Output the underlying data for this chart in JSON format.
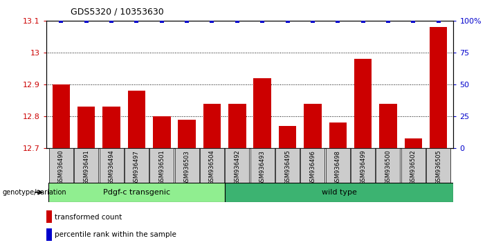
{
  "title": "GDS5320 / 10353630",
  "samples": [
    "GSM936490",
    "GSM936491",
    "GSM936494",
    "GSM936497",
    "GSM936501",
    "GSM936503",
    "GSM936504",
    "GSM936492",
    "GSM936493",
    "GSM936495",
    "GSM936496",
    "GSM936498",
    "GSM936499",
    "GSM936500",
    "GSM936502",
    "GSM936505"
  ],
  "red_values": [
    12.9,
    12.83,
    12.83,
    12.88,
    12.8,
    12.79,
    12.84,
    12.84,
    12.92,
    12.77,
    12.84,
    12.78,
    12.98,
    12.84,
    12.73,
    13.08
  ],
  "blue_values": [
    100,
    100,
    100,
    100,
    100,
    100,
    100,
    100,
    100,
    100,
    100,
    100,
    100,
    100,
    100,
    100
  ],
  "group1_count": 7,
  "group1_label": "Pdgf-c transgenic",
  "group2_label": "wild type",
  "group1_color": "#90EE90",
  "group2_color": "#3CB371",
  "ylim_left": [
    12.7,
    13.1
  ],
  "ylim_right": [
    0,
    100
  ],
  "yticks_left": [
    12.7,
    12.8,
    12.9,
    13.0,
    13.1
  ],
  "yticks_right": [
    0,
    25,
    50,
    75,
    100
  ],
  "ytick_labels_right": [
    "0",
    "25",
    "50",
    "75",
    "100%"
  ],
  "bar_color": "#CC0000",
  "blue_marker_color": "#0000CC",
  "xlabel_color": "#CC0000",
  "ylabel_right_color": "#0000CC",
  "tick_label_bg": "#CCCCCC",
  "legend_red_label": "transformed count",
  "legend_blue_label": "percentile rank within the sample",
  "genotype_label": "genotype/variation"
}
